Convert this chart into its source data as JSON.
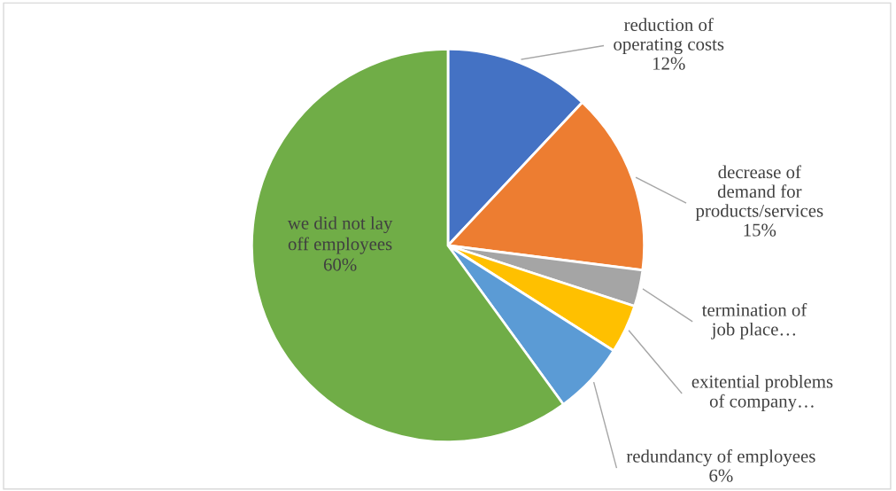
{
  "chart_data": {
    "type": "pie",
    "categories": [
      "reduction of\noperating costs",
      "decrease of\ndemand for\nproducts/services",
      "termination of\njob place…",
      "exitential problems\nof company…",
      "redundancy of employees",
      "we did not lay\noff employees"
    ],
    "values": [
      12,
      15,
      3,
      4,
      6,
      60
    ],
    "value_labels": [
      "12%",
      "15%",
      null,
      null,
      "6%",
      "60%"
    ],
    "colors": [
      "#4472c4",
      "#ed7d31",
      "#a5a5a5",
      "#ffc000",
      "#5b9bd5",
      "#70ad47"
    ],
    "legend": false
  }
}
